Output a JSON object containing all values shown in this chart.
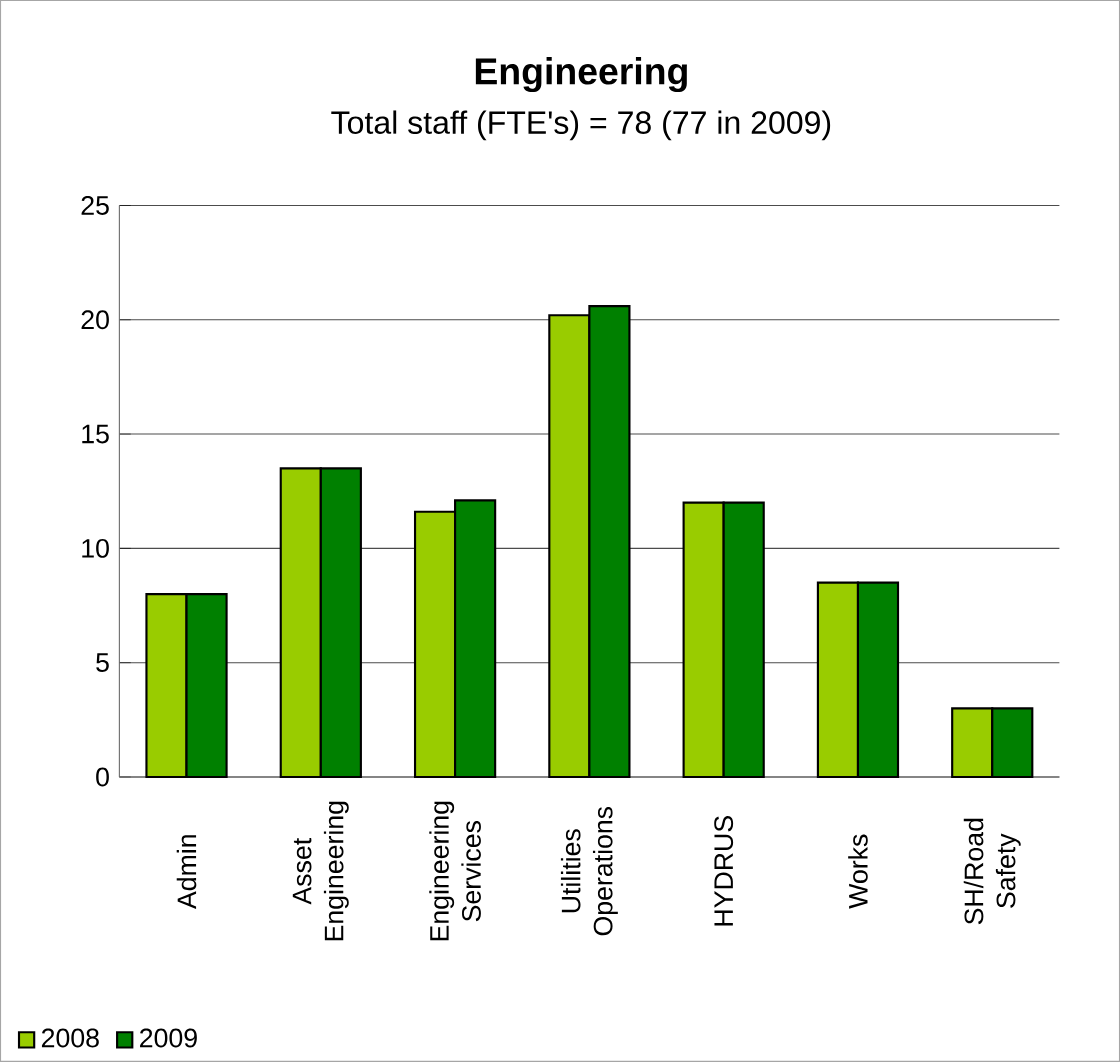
{
  "chart_data": {
    "type": "bar",
    "title": "Engineering",
    "subtitle": "Total staff (FTE's) = 78 (77 in 2009)",
    "categories": [
      "Admin",
      "Asset Engineering",
      "Engineering Services",
      "Utilities Operations",
      "HYDRUS",
      "Works",
      "SH/Road Safety"
    ],
    "series": [
      {
        "name": "2008",
        "color": "#99cc00",
        "values": [
          8,
          13.5,
          11.6,
          20.2,
          12,
          8.5,
          3
        ]
      },
      {
        "name": "2009",
        "color": "#008000",
        "values": [
          8,
          13.5,
          12.1,
          20.6,
          12,
          8.5,
          3
        ]
      }
    ],
    "ylim": [
      0,
      25
    ],
    "yticks": [
      0,
      5,
      10,
      15,
      20,
      25
    ],
    "grid": "y",
    "legend": "bottom left"
  }
}
